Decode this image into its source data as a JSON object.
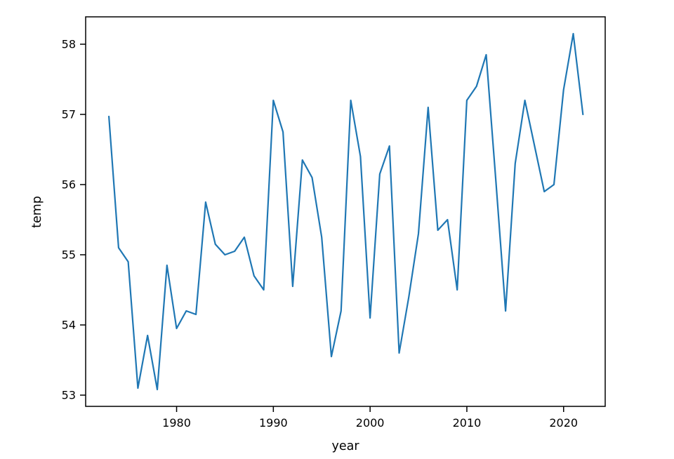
{
  "chart_data": {
    "type": "line",
    "title": "",
    "xlabel": "year",
    "ylabel": "temp",
    "x": [
      1973,
      1974,
      1975,
      1976,
      1977,
      1978,
      1979,
      1980,
      1981,
      1982,
      1983,
      1984,
      1985,
      1986,
      1987,
      1988,
      1989,
      1990,
      1991,
      1992,
      1993,
      1994,
      1995,
      1996,
      1997,
      1998,
      1999,
      2000,
      2001,
      2002,
      2003,
      2004,
      2005,
      2006,
      2007,
      2008,
      2009,
      2010,
      2011,
      2012,
      2013,
      2014,
      2015,
      2016,
      2017,
      2018,
      2019,
      2020,
      2021,
      2022
    ],
    "values": [
      56.97,
      55.1,
      54.9,
      53.1,
      53.85,
      53.08,
      54.85,
      53.95,
      54.2,
      54.15,
      55.75,
      55.15,
      55.0,
      55.05,
      55.25,
      54.7,
      54.5,
      57.2,
      56.75,
      54.55,
      56.35,
      56.1,
      55.25,
      53.55,
      54.2,
      57.2,
      56.4,
      54.1,
      56.15,
      56.55,
      53.6,
      54.4,
      55.3,
      57.1,
      55.35,
      55.5,
      54.5,
      57.2,
      57.4,
      57.85,
      56.05,
      54.2,
      56.3,
      57.2,
      56.55,
      55.9,
      56.0,
      57.35,
      58.15,
      57.0
    ],
    "x_ticks": [
      1980,
      1990,
      2000,
      2010,
      2020
    ],
    "y_ticks": [
      53,
      54,
      55,
      56,
      57,
      58
    ],
    "xlim": [
      1970.6,
      2024.3
    ],
    "ylim": [
      52.84,
      58.39
    ],
    "grid": false,
    "legend": "none",
    "line_color": "#1f77b4",
    "spine_color": "#000000"
  }
}
